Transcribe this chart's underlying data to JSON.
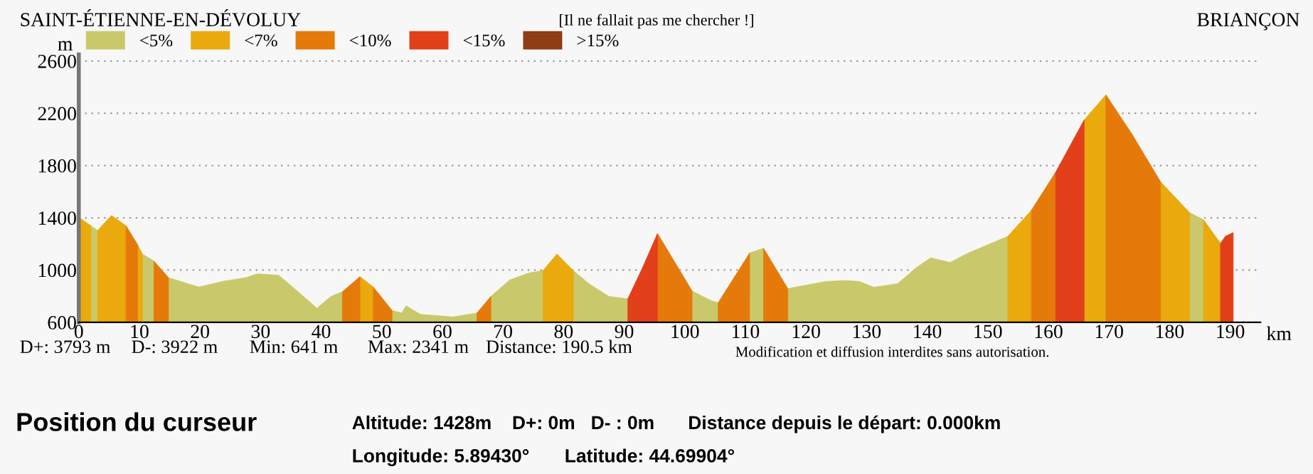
{
  "chart_data": {
    "type": "area",
    "title": "[Il ne fallait pas me chercher !]",
    "ylabel": "m",
    "xlabel": "km",
    "xlim": [
      0,
      195
    ],
    "xticks": [
      0,
      10,
      20,
      30,
      40,
      50,
      60,
      70,
      80,
      90,
      100,
      110,
      120,
      130,
      140,
      150,
      160,
      170,
      180,
      190
    ],
    "ylim": [
      600,
      2650
    ],
    "yticks": [
      600,
      1000,
      1400,
      1800,
      2200,
      2600
    ],
    "grid": "y",
    "legend": "top left",
    "series": [
      {
        "name": "<5%",
        "color": "#c9c96b",
        "x": [
          2,
          3.1,
          null,
          10.5,
          12.4,
          null,
          14.8,
          19.8,
          23.7,
          27.6,
          29.5,
          33,
          36.2,
          39.3,
          41.6,
          43.5,
          null,
          51.7,
          53.3,
          54,
          56.4,
          60.3,
          61.8,
          65.7,
          null,
          68,
          71.1,
          74.3,
          76.6,
          null,
          81.6,
          84.4,
          87.5,
          90.6,
          null,
          101.2,
          104.3,
          105.5,
          null,
          110.7,
          113,
          null,
          117,
          123.3,
          126.4,
          128.8,
          131.2,
          135.1,
          138.3,
          140.6,
          143.8,
          146.8,
          153.3,
          null,
          183.3,
          185.6
        ],
        "values": [
          1339,
          1303,
          null,
          1123,
          1069,
          null,
          942,
          870,
          913,
          942,
          971,
          960,
          834,
          708,
          798,
          834,
          null,
          690,
          672,
          726,
          661,
          647,
          641,
          672,
          null,
          798,
          924,
          978,
          996,
          null,
          996,
          888,
          798,
          780,
          null,
          840,
          767,
          749,
          null,
          1131,
          1167,
          null,
          858,
          913,
          920,
          913,
          869,
          895,
          1022,
          1094,
          1058,
          1131,
          1258,
          null,
          1440,
          1385
        ]
      },
      {
        "name": "<7%",
        "color": "#eaa90c",
        "x": [
          0,
          2,
          null,
          3.1,
          5.4,
          7.8,
          null,
          9.7,
          10.5,
          null,
          46.4,
          48.6,
          null,
          76.6,
          78.9,
          81.6,
          null,
          153.3,
          157.2,
          null,
          165.9,
          169.5,
          null,
          178.5,
          183.3,
          null,
          185.6,
          188.4
        ],
        "values": [
          1404,
          1339,
          null,
          1303,
          1418,
          1339,
          null,
          1195,
          1123,
          null,
          950,
          870,
          null,
          996,
          1123,
          996,
          null,
          1258,
          1458,
          null,
          2149,
          2341,
          null,
          1676,
          1440,
          null,
          1385,
          1204
        ]
      },
      {
        "name": "<10%",
        "color": "#e57a0a",
        "x": [
          7.8,
          9.7,
          null,
          12.4,
          14.8,
          null,
          43.5,
          46.4,
          null,
          48.6,
          51.7,
          null,
          65.7,
          68,
          null,
          95.5,
          101.2,
          null,
          105.5,
          110.7,
          null,
          113,
          117,
          null,
          157.2,
          161.2,
          null,
          169.5,
          173.8,
          178.5
        ],
        "values": [
          1339,
          1195,
          null,
          1069,
          942,
          null,
          834,
          950,
          null,
          870,
          690,
          null,
          672,
          798,
          null,
          1280,
          840,
          null,
          749,
          1131,
          null,
          1167,
          858,
          null,
          1458,
          1749,
          null,
          2341,
          2040,
          1676
        ]
      },
      {
        "name": "<15%",
        "color": "#e2401a",
        "x": [
          90.6,
          93,
          95.5,
          null,
          161.2,
          165.9,
          null,
          188.4,
          189.2,
          190.5
        ],
        "values": [
          780,
          1015,
          1280,
          null,
          1749,
          2149,
          null,
          1204,
          1258,
          1287
        ]
      },
      {
        "name": ">15%",
        "color": "#8e3d14"
      }
    ],
    "annotations": [
      "SAINT-ÉTIENNE-EN-DÉVOLUY",
      "BRIANÇON",
      "D+: 3793 m",
      "D-: 3922 m",
      "Min: 641 m",
      "Max: 2341 m",
      "Distance: 190.5 km",
      "Modification et diffusion interdites sans autorisation.",
      "Position du curseur",
      "Altitude: 1428m",
      "D+: 0m",
      "D- : 0m",
      "Distance depuis le départ: 0.000km",
      "Longitude: 5.89430°",
      "Latitude: 44.69904°"
    ]
  }
}
